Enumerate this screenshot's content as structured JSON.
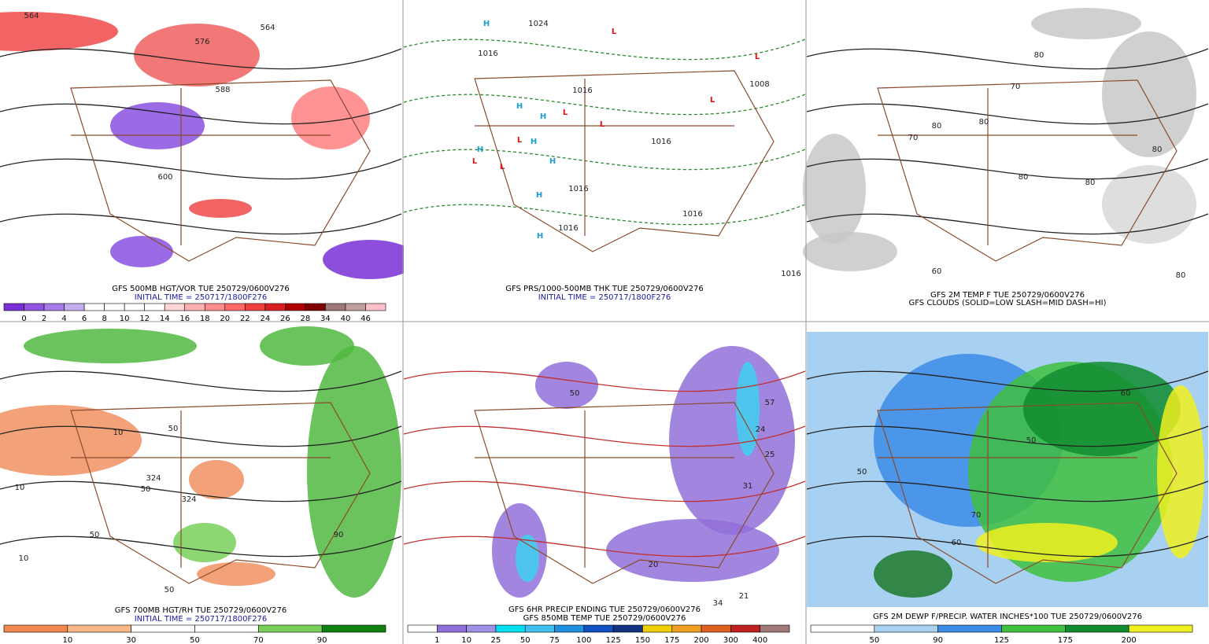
{
  "panels": [
    {
      "caption": "GFS 500MB HGT/VOR TUE 250729/0600V276",
      "subcaption": "INITIAL TIME = 250717/1800F276",
      "colorbar": {
        "labels": [
          0,
          2,
          4,
          6,
          8,
          10,
          12,
          14,
          16,
          18,
          20,
          22,
          24,
          26,
          28,
          34,
          40,
          46
        ],
        "colors": [
          "#7a2fd6",
          "#8f55e0",
          "#a57ce8",
          "#c4aef0",
          "#ffffff",
          "#ffffff",
          "#ffffff",
          "#ffffff",
          "#ffd6d6",
          "#ffb0b0",
          "#ff8c8c",
          "#ff6666",
          "#f04040",
          "#d82020",
          "#b00000",
          "#800000",
          "#a07878",
          "#c0a0a0",
          "#ffc0cb"
        ]
      },
      "map_labels": [
        "564",
        "564",
        "576",
        "588",
        "600"
      ]
    },
    {
      "caption": "GFS PRS/1000-500MB THK TUE 250729/0600V276",
      "subcaption": "INITIAL TIME = 250717/1800F276",
      "map_labels": [
        "1024",
        "1016",
        "1016",
        "1008",
        "1016",
        "1016",
        "1016",
        "1016",
        "1016",
        "L",
        "L",
        "L",
        "L",
        "L",
        "L",
        "L",
        "L",
        "H",
        "H",
        "H",
        "H",
        "H",
        "H",
        "H",
        "H"
      ]
    },
    {
      "caption": "GFS 2M TEMP F TUE 250729/0600V276",
      "subcaption": "GFS CLOUDS (SOLID=LOW SLASH=MID DASH=HI)",
      "map_labels": [
        "80",
        "70",
        "80",
        "80",
        "70",
        "80",
        "80",
        "80",
        "60",
        "80"
      ]
    },
    {
      "caption": "GFS 700MB HGT/RH TUE 250729/0600V276",
      "subcaption": "INITIAL TIME = 250717/1800F276",
      "colorbar": {
        "labels": [
          10,
          30,
          50,
          70,
          90
        ],
        "colors": [
          "#f08850",
          "#f8b888",
          "#ffffff",
          "#ffffff",
          "#78d058",
          "#108010"
        ]
      },
      "map_labels": [
        "10",
        "10",
        "50",
        "324",
        "324",
        "50",
        "50",
        "90",
        "10",
        "50"
      ]
    },
    {
      "caption": "GFS 6HR PRECIP ENDING TUE 250729/0600V276",
      "subcaption": "GFS 850MB TEMP TUE 250729/0600V276",
      "colorbar": {
        "labels": [
          1,
          10,
          25,
          50,
          75,
          100,
          125,
          150,
          175,
          200,
          300,
          400
        ],
        "colors": [
          "#ffffff",
          "#9070d8",
          "#a090e8",
          "#00e0f0",
          "#40c0f0",
          "#2090e0",
          "#1050c0",
          "#103080",
          "#f0d000",
          "#f0a020",
          "#e06020",
          "#c02020",
          "#a07878"
        ]
      },
      "map_labels": [
        "57",
        "24",
        "25",
        "31",
        "21",
        "34",
        "50",
        "20"
      ]
    },
    {
      "caption": "GFS 2M DEWP F/PRECIP. WATER INCHES*100 TUE 250729/0600V276",
      "colorbar": {
        "labels": [
          50,
          90,
          125,
          175,
          200
        ],
        "colors": [
          "#ffffff",
          "#a8d0f0",
          "#3c8ce8",
          "#40c040",
          "#108c30",
          "#f0f020"
        ]
      },
      "map_labels": [
        "50",
        "60",
        "70",
        "50",
        "60"
      ]
    }
  ]
}
